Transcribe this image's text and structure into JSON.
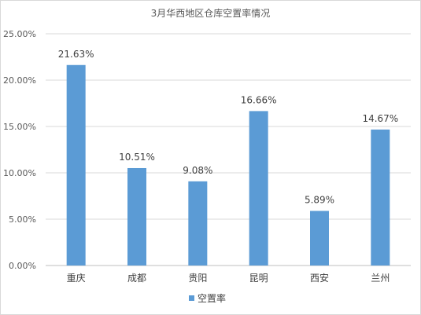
{
  "chart_data": {
    "type": "bar",
    "title": "3月华西地区仓库空置率情况",
    "categories": [
      "重庆",
      "成都",
      "贵阳",
      "昆明",
      "西安",
      "兰州"
    ],
    "series": [
      {
        "name": "空置率",
        "values": [
          21.63,
          10.51,
          9.08,
          16.66,
          5.89,
          14.67
        ],
        "labels": [
          "21.63%",
          "10.51%",
          "9.08%",
          "16.66%",
          "5.89%",
          "14.67%"
        ],
        "color": "#5b9bd5"
      }
    ],
    "yticks": [
      "0.00%",
      "5.00%",
      "10.00%",
      "15.00%",
      "20.00%",
      "25.00%"
    ],
    "ylim": [
      0,
      25
    ],
    "grid": true,
    "legend": "bottom"
  }
}
